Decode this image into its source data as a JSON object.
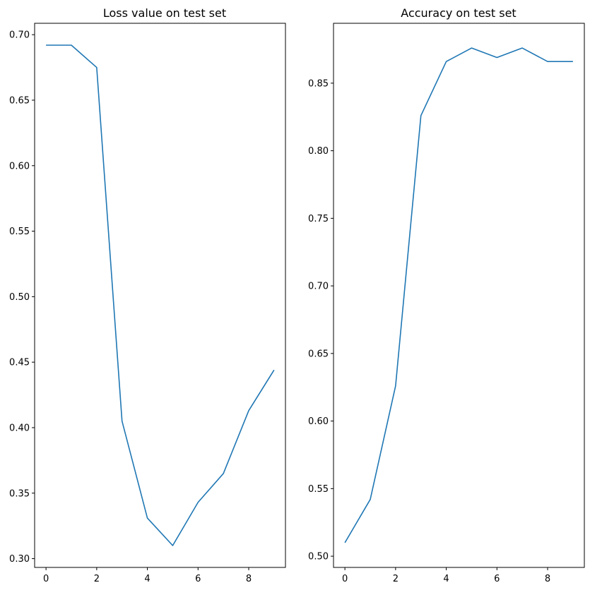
{
  "chart_data": [
    {
      "type": "line",
      "title": "Loss value on test set",
      "xlabel": "",
      "ylabel": "",
      "x": [
        0,
        1,
        2,
        3,
        4,
        5,
        6,
        7,
        8,
        9
      ],
      "series": [
        {
          "values": [
            0.692,
            0.692,
            0.675,
            0.405,
            0.331,
            0.31,
            0.343,
            0.365,
            0.413,
            0.444
          ],
          "color": "#1f77b4"
        }
      ],
      "xlim": [
        -0.45,
        9.45
      ],
      "ylim": [
        0.2933,
        0.7087
      ],
      "xticks": [
        0,
        2,
        4,
        6,
        8
      ],
      "xtick_labels": [
        "0",
        "2",
        "4",
        "6",
        "8"
      ],
      "yticks": [
        0.3,
        0.35,
        0.4,
        0.45,
        0.5,
        0.55,
        0.6,
        0.65,
        0.7
      ],
      "ytick_labels": [
        "0.30",
        "0.35",
        "0.40",
        "0.45",
        "0.50",
        "0.55",
        "0.60",
        "0.65",
        "0.70"
      ],
      "grid": false,
      "legend": "none"
    },
    {
      "type": "line",
      "title": "Accuracy on test set",
      "xlabel": "",
      "ylabel": "",
      "x": [
        0,
        1,
        2,
        3,
        4,
        5,
        6,
        7,
        8,
        9
      ],
      "series": [
        {
          "values": [
            0.51,
            0.542,
            0.626,
            0.826,
            0.866,
            0.876,
            0.869,
            0.876,
            0.866,
            0.866
          ],
          "color": "#1f77b4"
        }
      ],
      "xlim": [
        -0.45,
        9.45
      ],
      "ylim": [
        0.4917,
        0.8943
      ],
      "xticks": [
        0,
        2,
        4,
        6,
        8
      ],
      "xtick_labels": [
        "0",
        "2",
        "4",
        "6",
        "8"
      ],
      "yticks": [
        0.5,
        0.55,
        0.6,
        0.65,
        0.7,
        0.75,
        0.8,
        0.85
      ],
      "ytick_labels": [
        "0.50",
        "0.55",
        "0.60",
        "0.65",
        "0.70",
        "0.75",
        "0.80",
        "0.85"
      ],
      "grid": false,
      "legend": "none"
    }
  ]
}
